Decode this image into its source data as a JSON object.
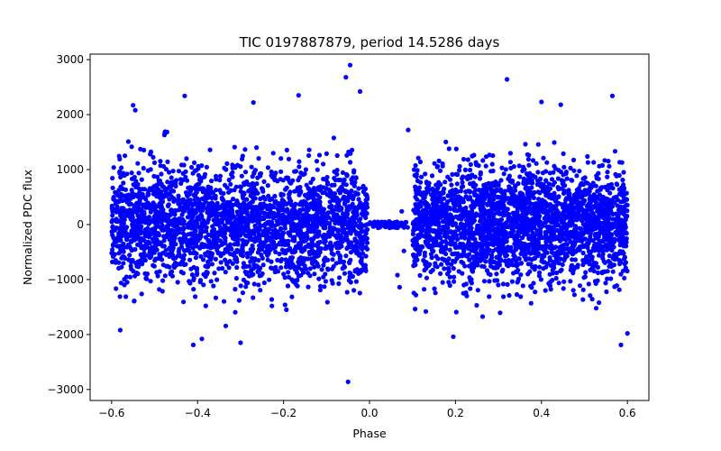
{
  "chart_data": {
    "type": "scatter",
    "title": "TIC 0197887879, period 14.5286 days",
    "xlabel": "Phase",
    "ylabel": "Normalized PDC flux",
    "xlim": [
      -0.65,
      0.65
    ],
    "ylim": [
      -3200,
      3100
    ],
    "x_ticks": [
      -0.6,
      -0.4,
      -0.2,
      0.0,
      0.2,
      0.4,
      0.6
    ],
    "x_tick_labels": [
      "−0.6",
      "−0.4",
      "−0.2",
      "0.0",
      "0.2",
      "0.4",
      "0.6"
    ],
    "y_ticks": [
      -3000,
      -2000,
      -1000,
      0,
      1000,
      2000,
      3000
    ],
    "y_tick_labels": [
      "−3000",
      "−2000",
      "−1000",
      "0",
      "1000",
      "2000",
      "3000"
    ],
    "marker_color": "#0000ff",
    "grid": false,
    "series": [
      {
        "name": "flux",
        "noise_regions": [
          {
            "x_range": [
              -0.6,
              -0.005
            ],
            "y_std": 520
          },
          {
            "x_range": [
              0.1,
              0.6
            ],
            "y_std": 520
          }
        ],
        "flat_region": {
          "x_range": [
            0.0,
            0.09
          ],
          "y_range": [
            -60,
            60
          ]
        },
        "outliers": [
          {
            "x": -0.045,
            "y": 2900
          },
          {
            "x": -0.055,
            "y": 2680
          },
          {
            "x": -0.022,
            "y": 2420
          },
          {
            "x": -0.165,
            "y": 2350
          },
          {
            "x": -0.43,
            "y": 2340
          },
          {
            "x": -0.27,
            "y": 2220
          },
          {
            "x": -0.55,
            "y": 2170
          },
          {
            "x": -0.545,
            "y": 2080
          },
          {
            "x": -0.05,
            "y": -2860
          },
          {
            "x": -0.41,
            "y": -2190
          },
          {
            "x": -0.3,
            "y": -2150
          },
          {
            "x": -0.39,
            "y": -2080
          },
          {
            "x": -0.58,
            "y": -1920
          },
          {
            "x": 0.32,
            "y": 2640
          },
          {
            "x": 0.565,
            "y": 2340
          },
          {
            "x": 0.4,
            "y": 2230
          },
          {
            "x": 0.445,
            "y": 2180
          },
          {
            "x": 0.585,
            "y": -2190
          },
          {
            "x": 0.6,
            "y": -1980
          },
          {
            "x": 0.195,
            "y": -2040
          },
          {
            "x": 0.09,
            "y": 1720
          },
          {
            "x": 0.065,
            "y": -920
          },
          {
            "x": 0.07,
            "y": -1140
          },
          {
            "x": 0.08,
            "y": -480
          },
          {
            "x": 0.075,
            "y": 240
          }
        ]
      }
    ]
  }
}
